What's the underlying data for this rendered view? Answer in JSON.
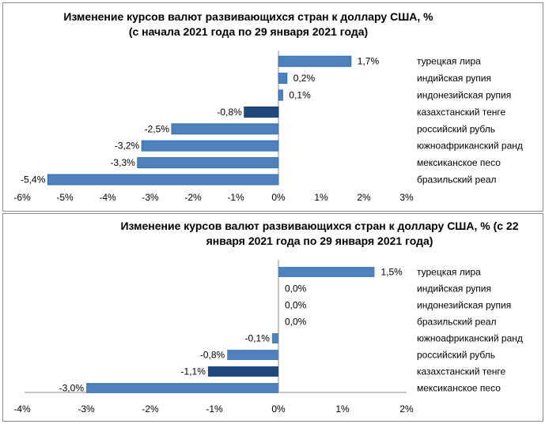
{
  "colors": {
    "bar": "#4f81bd",
    "highlight": "#1f497d",
    "bar_border": "#2e6db4",
    "axis": "#8c8c8c"
  },
  "chart_data": [
    {
      "type": "bar",
      "orientation": "horizontal",
      "title": "Изменение курсов валют развивающихся стран к доллару США, % (с начала 2021 года по 29 января 2021 года)",
      "categories": [
        "турецкая лира",
        "индийская рупия",
        "индонезийская рупия",
        "казахстанский тенге",
        "российский рубль",
        "южноафриканский ранд",
        "мексиканское песо",
        "бразильский реал"
      ],
      "values": [
        1.7,
        0.2,
        0.1,
        -0.8,
        -2.5,
        -3.2,
        -3.3,
        -5.4
      ],
      "data_labels": [
        "1,7%",
        "0,2%",
        "0,1%",
        "-0,8%",
        "-2,5%",
        "-3,2%",
        "-3,3%",
        "-5,4%"
      ],
      "highlight": "казахстанский тенге",
      "xlim": [
        -6,
        3
      ],
      "tick_labels": [
        "-6%",
        "-5%",
        "-4%",
        "-3%",
        "-2%",
        "-1%",
        "0%",
        "1%",
        "2%",
        "3%"
      ],
      "xlabel": "",
      "ylabel": "",
      "grid": false,
      "legend": "none"
    },
    {
      "type": "bar",
      "orientation": "horizontal",
      "title": "Изменение курсов валют развивающихся стран к доллару США, % (с 22 января 2021 года по 29 января 2021 года)",
      "categories": [
        "турецкая лира",
        "индийская рупия",
        "индонезийская рупия",
        "бразильский реал",
        "южноафриканский ранд",
        "российский рубль",
        "казахстанский тенге",
        "мексиканское песо"
      ],
      "values": [
        1.5,
        0.0,
        0.0,
        0.0,
        -0.1,
        -0.8,
        -1.1,
        -3.0
      ],
      "data_labels": [
        "1,5%",
        "0,0%",
        "0,0%",
        "0,0%",
        "-0,1%",
        "-0,8%",
        "-1,1%",
        "-3,0%"
      ],
      "highlight": "казахстанский тенге",
      "xlim": [
        -4,
        2
      ],
      "tick_labels": [
        "-4%",
        "-3%",
        "-2%",
        "-1%",
        "0%",
        "1%",
        "2%"
      ],
      "xlabel": "",
      "ylabel": "",
      "grid": false,
      "legend": "none"
    }
  ]
}
